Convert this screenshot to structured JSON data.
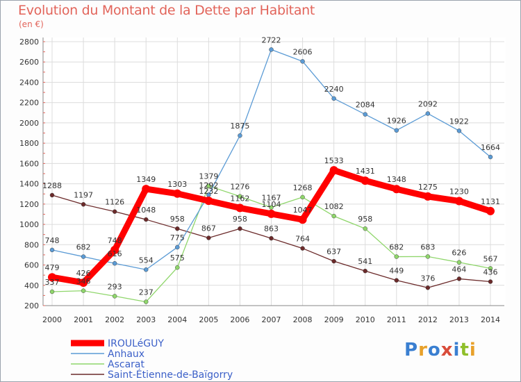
{
  "title": "Evolution du Montant de la Dette par Habitant",
  "unit": "(en €)",
  "logo": [
    "P",
    "r",
    "o",
    "x",
    "i",
    "t",
    "i"
  ],
  "chart_data": {
    "type": "line",
    "x": [
      2000,
      2001,
      2002,
      2003,
      2004,
      2005,
      2006,
      2007,
      2008,
      2009,
      2010,
      2011,
      2012,
      2013,
      2014
    ],
    "ylim": [
      200,
      2800
    ],
    "yticks": [
      200,
      400,
      600,
      800,
      1000,
      1200,
      1400,
      1600,
      1800,
      2000,
      2200,
      2400,
      2600,
      2800
    ],
    "grid": true,
    "legend_position": "bottom-left",
    "series": [
      {
        "name": "Saint-Étienne-de-Baïgorry",
        "color": "#6b2a2a",
        "values": [
          1288,
          1197,
          1126,
          1048,
          958,
          867,
          958,
          863,
          764,
          637,
          541,
          449,
          376,
          464,
          436
        ]
      },
      {
        "name": "Ascarat",
        "color": "#8fd66b",
        "values": [
          337,
          346,
          293,
          237,
          575,
          1379,
          1276,
          1167,
          1268,
          1082,
          958,
          682,
          683,
          626,
          567
        ]
      },
      {
        "name": "Anhaux",
        "color": "#5b9bd5",
        "values": [
          748,
          682,
          616,
          554,
          775,
          1292,
          1875,
          2722,
          2606,
          2240,
          2084,
          1926,
          2092,
          1922,
          1664
        ]
      },
      {
        "name": "IROULéGUY",
        "color": "#ff0000",
        "values": [
          479,
          426,
          748,
          1349,
          1303,
          1232,
          1162,
          1104,
          1047,
          1533,
          1431,
          1348,
          1275,
          1230,
          1131
        ]
      }
    ],
    "labels": {
      "Saint-Étienne-de-Baïgorry": [
        "1288",
        "1197",
        "1126",
        "1048",
        "958",
        "867",
        "958",
        "863",
        "764",
        "637",
        "541",
        "449",
        "376",
        "464",
        "436"
      ],
      "Ascarat": [
        "337",
        "346",
        "293",
        "237",
        "575",
        "1379",
        "1276",
        "1167",
        "1268",
        "1082",
        "958",
        "682",
        "683",
        "626",
        "567"
      ],
      "Anhaux": [
        "748",
        "682",
        "616",
        "554",
        "775",
        "1292",
        "1875",
        "2722",
        "2606",
        "2240",
        "2084",
        "1926",
        "2092",
        "1922",
        "1664"
      ],
      "IROULéGUY": [
        "479",
        "426",
        "748",
        "1349",
        "1303",
        "1232",
        "1162",
        "1104",
        "1047",
        "1533",
        "1431",
        "1348",
        "1275",
        "1230",
        "1131"
      ]
    }
  }
}
